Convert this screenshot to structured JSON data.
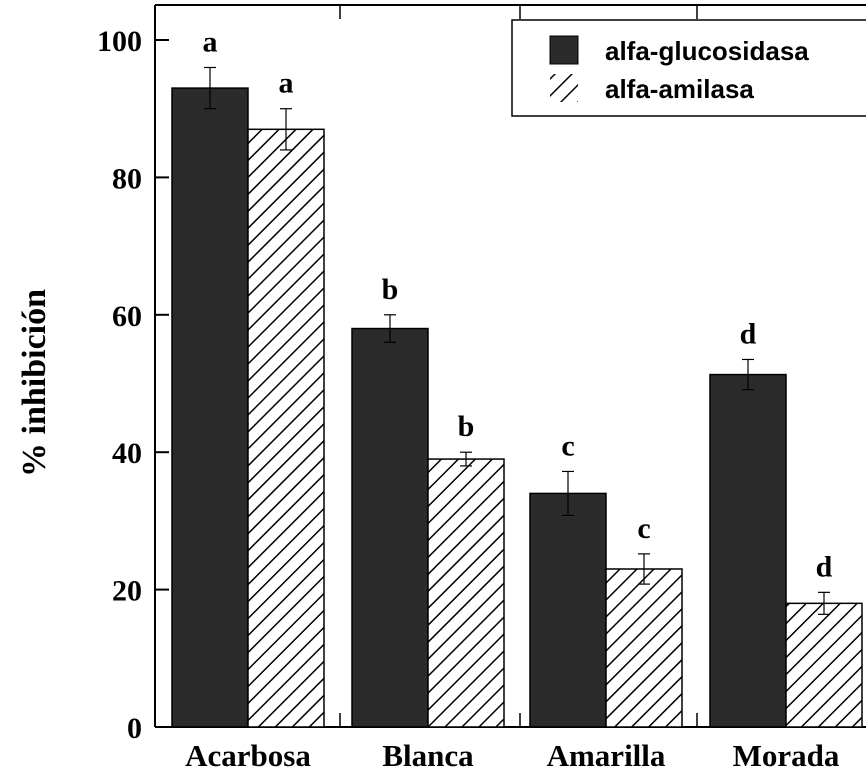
{
  "chart_data": {
    "type": "bar",
    "title": "",
    "xlabel": "",
    "ylabel": "% inhibición",
    "ylim": [
      0,
      100
    ],
    "yticks": [
      "0",
      "20",
      "40",
      "60",
      "80",
      "100"
    ],
    "categories": [
      "Acarbosa",
      "Blanca",
      "Amarilla",
      "Morada"
    ],
    "legend_position": "top-right",
    "grid": false,
    "series": [
      {
        "name": "alfa-glucosidasa",
        "fill": "solid",
        "color": "#2b2b2b",
        "values": [
          93,
          58,
          34,
          51.3
        ],
        "errors": [
          3,
          2,
          3.2,
          2.2
        ],
        "labels": [
          "a",
          "b",
          "c",
          "d"
        ]
      },
      {
        "name": "alfa-amilasa",
        "fill": "hatched",
        "color": "#000000",
        "values": [
          87,
          39,
          23,
          18
        ],
        "errors": [
          3,
          1,
          2.2,
          1.6
        ],
        "labels": [
          "a",
          "b",
          "c",
          "d"
        ]
      }
    ]
  }
}
